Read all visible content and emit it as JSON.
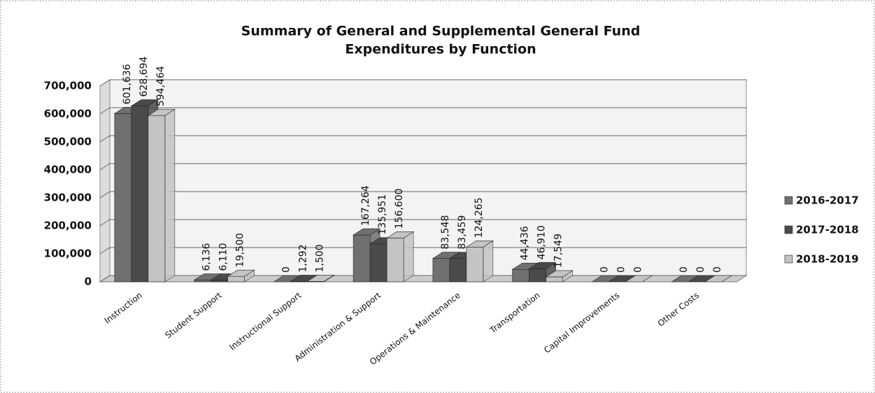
{
  "chart_data": {
    "type": "bar",
    "title": "Summary of General and Supplemental General Fund",
    "subtitle": "Expenditures by Function",
    "categories": [
      "Instruction",
      "Student Support",
      "Instructional Support",
      "Administration & Support",
      "Operations & Maintenance",
      "Transportation",
      "Capital Improvements",
      "Other Costs"
    ],
    "series": [
      {
        "name": "2016-2017",
        "color": "#707070",
        "values": [
          601636,
          6136,
          0,
          167264,
          83548,
          44436,
          0,
          0
        ],
        "value_labels": [
          "601,636",
          "6,136",
          "0",
          "167,264",
          "83,548",
          "44,436",
          "0",
          "0"
        ]
      },
      {
        "name": "2017-2018",
        "color": "#4a4a4a",
        "values": [
          628694,
          6110,
          1292,
          135951,
          83459,
          46910,
          0,
          0
        ],
        "value_labels": [
          "628,694",
          "6,110",
          "1,292",
          "135,951",
          "83,459",
          "46,910",
          "0",
          "0"
        ]
      },
      {
        "name": "2018-2019",
        "color": "#c4c4c4",
        "values": [
          594464,
          19500,
          1500,
          156600,
          124265,
          17549,
          0,
          0
        ],
        "value_labels": [
          "594,464",
          "19,500",
          "1,500",
          "156,600",
          "124,265",
          "17,549",
          "0",
          "0"
        ]
      }
    ],
    "ylim": [
      0,
      700000
    ],
    "yticks": [
      0,
      {
        "value": 100000,
        "label": "100,000"
      },
      {
        "value": 200000,
        "label": "200,000"
      },
      {
        "value": 300000,
        "label": "300,000"
      },
      {
        "value": 400000,
        "label": "400,000"
      },
      {
        "value": 500000,
        "label": "500,000"
      },
      {
        "value": 600000,
        "label": "600,000"
      },
      {
        "value": 700000,
        "label": "700,000"
      }
    ],
    "grid": true,
    "legend": "right"
  }
}
